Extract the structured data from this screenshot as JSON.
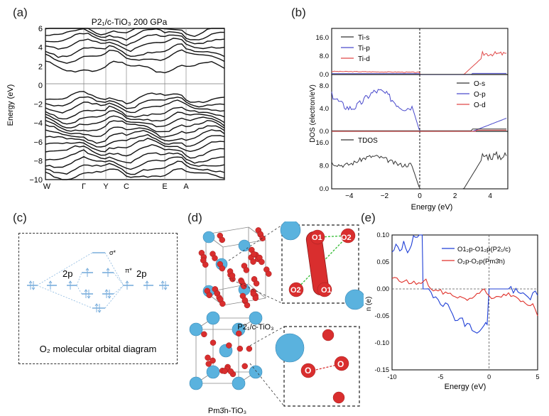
{
  "panels": {
    "a": "(a)",
    "b": "(b)",
    "c": "(c)",
    "d": "(d)",
    "e": "(e)"
  },
  "panel_a": {
    "title": "P2₁/c-TiO₃ 200 GPa",
    "ylabel": "Energy (eV)",
    "yticks": [
      "6",
      "4",
      "2",
      "0",
      "−2",
      "−4",
      "−6",
      "−8",
      "−10"
    ],
    "kpoints": [
      "W",
      "Γ",
      "Y",
      "C",
      "E",
      "A"
    ]
  },
  "panel_b": {
    "ylabel": "DOS (electron/eV)",
    "xlabel": "Energy (eV)",
    "xticks": [
      "−4",
      "−2",
      "0",
      "2",
      "4"
    ],
    "sub1": {
      "yticks": [
        "16.0",
        "8.0",
        "0.0"
      ],
      "legend": [
        "Ti-s",
        "Ti-p",
        "Ti-d"
      ]
    },
    "sub2": {
      "yticks": [
        "8.0",
        "4.0",
        "0.0"
      ],
      "legend": [
        "O-s",
        "O-p",
        "O-d"
      ]
    },
    "sub3": {
      "yticks": [
        "16.0",
        "8.0",
        "0.0"
      ],
      "legend": [
        "TDOS"
      ]
    },
    "colors": {
      "s": "#333333",
      "p": "#4a4acc",
      "d": "#e04848"
    }
  },
  "panel_c": {
    "left": "2p",
    "right": "2p",
    "sigma": "σ*",
    "pi": "π*",
    "caption": "O₂ molecular orbital diagram",
    "color": "#7aaedc"
  },
  "panel_d": {
    "top_caption": "P2₁/c-TiO₃",
    "bottom_caption": "Pm3̄n-TiO₃",
    "labels": {
      "o1": "O1",
      "o2": "O2",
      "o": "O"
    },
    "colors": {
      "ti": "#5ab2de",
      "o": "#d92e2e",
      "bond": "#3cbf3c"
    }
  },
  "chart_data": {
    "type": "line",
    "xlabel": "Energy (eV)",
    "ylabel": "n (e)",
    "xlim": [
      -10,
      5
    ],
    "ylim": [
      -0.15,
      0.1
    ],
    "xticks": [
      "-10",
      "-5",
      "0",
      "5"
    ],
    "yticks": [
      "0.10",
      "0.05",
      "0.00",
      "-0.05",
      "-0.10",
      "-0.15"
    ],
    "legend_position": "top-right",
    "series": [
      {
        "name": "O1₂p-O1₂p(P2₁/c)",
        "color": "#1f3fd6",
        "x": [
          -10,
          -9.6,
          -9.2,
          -8.8,
          -8.4,
          -8.0,
          -7.6,
          -7.2,
          -6.9,
          -6.8,
          -6.5,
          -6.0,
          -5.5,
          -5.0,
          -4.5,
          -4.0,
          -3.5,
          -3.0,
          -2.5,
          -2.0,
          -1.5,
          -1.0,
          -0.5,
          -0.2,
          0,
          0.5,
          1,
          2,
          3,
          4,
          5
        ],
        "y": [
          0.06,
          0.08,
          0.065,
          0.09,
          0.072,
          0.085,
          0.095,
          0.1,
          0.1,
          0.0,
          0.0,
          -0.005,
          -0.01,
          -0.02,
          -0.03,
          -0.04,
          -0.05,
          -0.055,
          -0.065,
          -0.07,
          -0.075,
          -0.08,
          -0.07,
          -0.06,
          0.0,
          0.0,
          0.0,
          0.0,
          -0.01,
          -0.012,
          -0.012
        ]
      },
      {
        "name": "O₂p-O₂p(Pm3̄n)",
        "color": "#e0302a",
        "x": [
          -10,
          -9,
          -8,
          -7,
          -6.5,
          -6,
          -5,
          -4,
          -3,
          -2,
          -1,
          -0.5,
          0,
          0.5,
          1,
          2,
          3,
          4,
          4.5,
          5
        ],
        "y": [
          0.02,
          0.015,
          0.012,
          0.01,
          0.015,
          0.0,
          -0.005,
          -0.01,
          -0.015,
          -0.02,
          -0.005,
          0.0,
          -0.01,
          -0.02,
          -0.015,
          -0.01,
          -0.02,
          -0.03,
          -0.025,
          -0.05
        ]
      }
    ]
  }
}
